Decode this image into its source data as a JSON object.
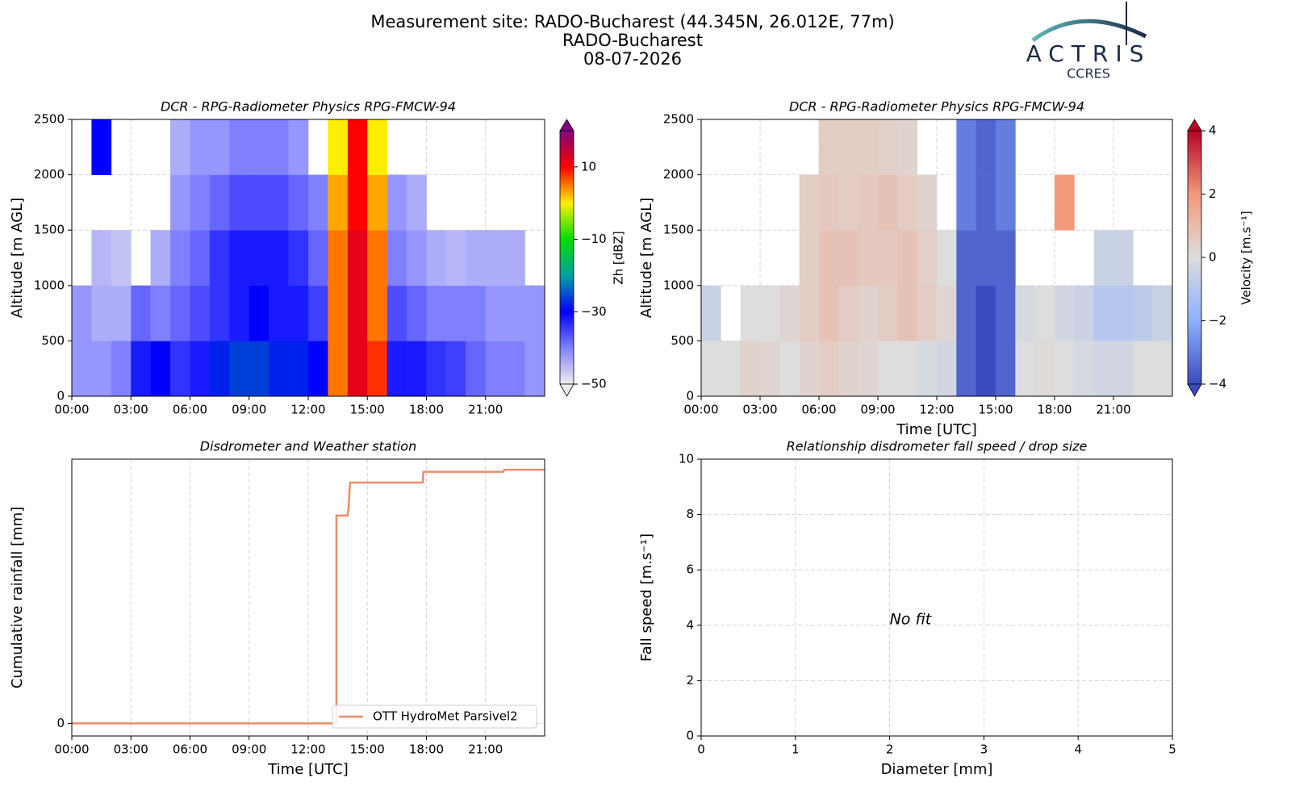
{
  "header": {
    "title": "Measurement site: RADO-Bucharest (44.345N, 26.012E, 77m)",
    "subtitle": "RADO-Bucharest",
    "date": "08-07-2026"
  },
  "logo": {
    "name": "ACTRIS",
    "sub": "CCRES"
  },
  "chart_data": [
    {
      "type": "heatmap",
      "title": "DCR - RPG-Radiometer Physics RPG-FMCW-94",
      "ylabel": "Altitude [m AGL]",
      "x_edges": [
        0,
        1,
        2,
        3,
        4,
        5,
        6,
        7,
        8,
        9,
        10,
        11,
        12,
        13,
        14,
        15,
        16,
        17,
        18,
        19,
        20,
        21,
        22,
        23,
        24
      ],
      "y_edges": [
        0,
        500,
        1000,
        1500,
        2000,
        2500
      ],
      "values": [
        [
          -42,
          -42,
          -40,
          -32,
          -30,
          -34,
          -32,
          -28,
          -26,
          -26,
          -28,
          -28,
          -30,
          5,
          12,
          8,
          -32,
          -32,
          -34,
          -35,
          -38,
          -40,
          -40,
          -42
        ],
        [
          -42,
          -44,
          -44,
          -38,
          -40,
          -38,
          -36,
          -34,
          -32,
          -30,
          -32,
          -32,
          -35,
          5,
          12,
          5,
          -36,
          -38,
          -40,
          -40,
          -40,
          -42,
          -42,
          -42
        ],
        [
          null,
          -45,
          -46,
          null,
          -44,
          -40,
          -38,
          -34,
          -32,
          -32,
          -32,
          -34,
          -38,
          5,
          12,
          5,
          -40,
          -42,
          -44,
          -45,
          -44,
          -44,
          -44,
          null
        ],
        [
          null,
          null,
          null,
          null,
          null,
          -42,
          -40,
          -38,
          -36,
          -36,
          -36,
          -38,
          -40,
          3,
          10,
          3,
          -42,
          -44,
          null,
          null,
          null,
          null,
          null,
          null
        ],
        [
          null,
          -30,
          null,
          null,
          null,
          -44,
          -42,
          -42,
          -40,
          -40,
          -40,
          -42,
          null,
          0,
          10,
          0,
          null,
          null,
          null,
          null,
          null,
          null,
          null,
          null
        ]
      ],
      "xlim": [
        0,
        24
      ],
      "xticks": [
        {
          "value": 0,
          "label": "00:00"
        },
        {
          "value": 3,
          "label": "03:00"
        },
        {
          "value": 6,
          "label": "06:00"
        },
        {
          "value": 9,
          "label": "09:00"
        },
        {
          "value": 12,
          "label": "12:00"
        },
        {
          "value": 15,
          "label": "15:00"
        },
        {
          "value": 18,
          "label": "18:00"
        },
        {
          "value": 21,
          "label": "21:00"
        }
      ],
      "ylim": [
        0,
        2500
      ],
      "yticks": [
        0,
        500,
        1000,
        1500,
        2000,
        2500
      ],
      "grid": true,
      "colorbar": {
        "label": "Zh [dBZ]",
        "lim": [
          -50,
          20
        ],
        "ticks": [
          {
            "value": -50,
            "label": "−50"
          },
          {
            "value": -30,
            "label": "−30"
          },
          {
            "value": -10,
            "label": "−10"
          },
          10
        ],
        "colormap": [
          "#eeeeee",
          "#8080ff",
          "#0000ff",
          "#00a0a0",
          "#00dd00",
          "#ffee00",
          "#ff0000",
          "#800080"
        ]
      }
    },
    {
      "type": "heatmap",
      "title": "DCR - RPG-Radiometer Physics RPG-FMCW-94",
      "ylabel": "Altitude [m AGL]",
      "xlabel": "Time [UTC]",
      "x_edges": [
        0,
        1,
        2,
        3,
        4,
        5,
        6,
        7,
        8,
        9,
        10,
        11,
        12,
        13,
        14,
        15,
        16,
        17,
        18,
        19,
        20,
        21,
        22,
        23,
        24
      ],
      "y_edges": [
        0,
        500,
        1000,
        1500,
        2000,
        2500
      ],
      "values": [
        [
          0,
          0,
          0.3,
          0.2,
          0,
          0.3,
          0.5,
          0.3,
          0.2,
          0,
          0,
          -0.2,
          -0.3,
          -3.5,
          -4,
          -3.5,
          0,
          0.1,
          0,
          -0.2,
          -0.3,
          -0.3,
          0,
          0
        ],
        [
          -0.5,
          null,
          0,
          0,
          0.2,
          0.5,
          0.8,
          0.5,
          0.3,
          0.5,
          0.8,
          0.5,
          0.2,
          -3.5,
          -4,
          -3.5,
          -0.2,
          0,
          -0.3,
          -0.5,
          -1,
          -1,
          -0.8,
          -0.5
        ],
        [
          null,
          null,
          null,
          null,
          null,
          0.5,
          0.8,
          0.8,
          0.6,
          0.6,
          0.8,
          0.4,
          0,
          -3.5,
          -3.5,
          -3.5,
          null,
          null,
          null,
          null,
          -0.5,
          -0.5,
          null,
          null
        ],
        [
          null,
          null,
          null,
          null,
          null,
          0.5,
          0.6,
          0.5,
          0.6,
          0.8,
          0.5,
          0.3,
          null,
          -3,
          -3.5,
          -3,
          null,
          null,
          2,
          null,
          null,
          null,
          null,
          null
        ],
        [
          null,
          null,
          null,
          null,
          null,
          null,
          0.5,
          0.5,
          0.5,
          0.4,
          0.3,
          null,
          null,
          -3,
          -3.5,
          -3,
          null,
          null,
          null,
          null,
          null,
          null,
          null,
          null
        ]
      ],
      "xlim": [
        0,
        24
      ],
      "xticks": [
        {
          "value": 0,
          "label": "00:00"
        },
        {
          "value": 3,
          "label": "03:00"
        },
        {
          "value": 6,
          "label": "06:00"
        },
        {
          "value": 9,
          "label": "09:00"
        },
        {
          "value": 12,
          "label": "12:00"
        },
        {
          "value": 15,
          "label": "15:00"
        },
        {
          "value": 18,
          "label": "18:00"
        },
        {
          "value": 21,
          "label": "21:00"
        }
      ],
      "ylim": [
        0,
        2500
      ],
      "yticks": [
        0,
        500,
        1000,
        1500,
        2000,
        2500
      ],
      "grid": true,
      "colorbar": {
        "label": "Velocity [m.s⁻¹]",
        "lim": [
          -4,
          4
        ],
        "ticks": [
          {
            "value": -4,
            "label": "−4"
          },
          {
            "value": -2,
            "label": "−2"
          },
          0,
          2,
          4
        ],
        "colormap": [
          "#3b4cc0",
          "#8db0fe",
          "#dddddd",
          "#f4987a",
          "#b40426"
        ]
      }
    },
    {
      "type": "line",
      "title": "Disdrometer and Weather station",
      "xlabel": "Time [UTC]",
      "ylabel": "Cumulative rainfall [mm]",
      "x": [
        0,
        13.43,
        13.43,
        14.0,
        14.05,
        14.12,
        17.81,
        17.85,
        21.9,
        21.95,
        24
      ],
      "series": [
        {
          "name": "OTT HydroMet Parsivel2",
          "color": "#ec8b67",
          "values": [
            0,
            0,
            8.26,
            8.26,
            8.6,
            9.57,
            9.57,
            10.0,
            10.0,
            10.08,
            10.08
          ]
        }
      ],
      "xlim": [
        0,
        24
      ],
      "xticks": [
        {
          "value": 0,
          "label": "00:00"
        },
        {
          "value": 3,
          "label": "03:00"
        },
        {
          "value": 6,
          "label": "06:00"
        },
        {
          "value": 9,
          "label": "09:00"
        },
        {
          "value": 12,
          "label": "12:00"
        },
        {
          "value": 15,
          "label": "15:00"
        },
        {
          "value": 18,
          "label": "18:00"
        },
        {
          "value": 21,
          "label": "21:00"
        }
      ],
      "ylim": [
        -0.5,
        10.5
      ],
      "yticks": [
        0
      ],
      "grid": true,
      "legend": "lower right"
    },
    {
      "type": "scatter",
      "title": "Relationship disdrometer fall speed / drop size",
      "xlabel": "Diameter [mm]",
      "ylabel": "Fall speed [m.s⁻¹]",
      "annotation": "No fit",
      "xlim": [
        0,
        5
      ],
      "xticks": [
        0,
        1,
        2,
        3,
        4,
        5
      ],
      "ylim": [
        0,
        10
      ],
      "yticks": [
        0,
        2,
        4,
        6,
        8,
        10
      ],
      "grid": true
    }
  ]
}
